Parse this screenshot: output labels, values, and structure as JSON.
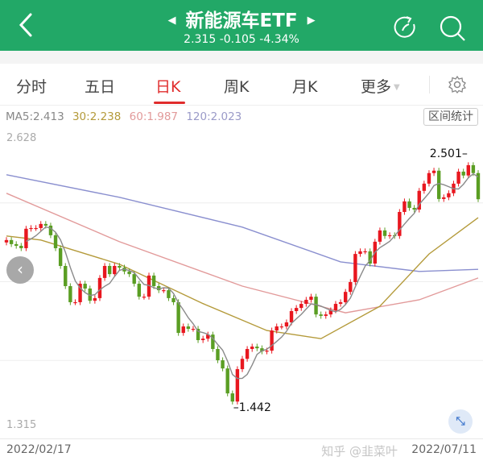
{
  "header": {
    "title": "新能源车ETF",
    "quote": "2.315 -0.105 -4.34%",
    "prev_icon": "triangle-left",
    "next_icon": "triangle-right",
    "color": "#22a867"
  },
  "tabs": [
    {
      "label": "分时"
    },
    {
      "label": "五日"
    },
    {
      "label": "日K",
      "active": true
    },
    {
      "label": "周K"
    },
    {
      "label": "月K"
    },
    {
      "label": "更多"
    }
  ],
  "ma": {
    "ma5": "MA5:2.413",
    "ma30": "30:2.238",
    "ma60": "60:1.987",
    "ma120": "120:2.023",
    "stats_button": "区间统计"
  },
  "axis": {
    "top": "2.628",
    "bottom": "1.315",
    "start_date": "2022/02/17",
    "end_date": "2022/07/11"
  },
  "watermark": "知乎 @韭菜叶",
  "chart_data": {
    "type": "candlestick",
    "ylim": [
      1.315,
      2.628
    ],
    "high_label": "2.501",
    "low_label": "1.442",
    "colors": {
      "up": "#e8171f",
      "down": "#5a9e23",
      "ma5": "#8a8a8a",
      "ma30": "#b49a3a",
      "ma60": "#e29a9a",
      "ma120": "#8a8fcf"
    },
    "closes": [
      2.145,
      2.128,
      2.121,
      2.111,
      2.192,
      2.195,
      2.195,
      2.212,
      2.205,
      2.165,
      2.111,
      2.037,
      1.953,
      1.886,
      1.886,
      1.963,
      1.943,
      1.892,
      1.903,
      1.987,
      2.037,
      2.003,
      2.037,
      2.03,
      2.014,
      2.003,
      1.963,
      1.909,
      1.909,
      1.997,
      1.953,
      1.936,
      1.936,
      1.903,
      1.886,
      1.758,
      1.785,
      1.775,
      1.775,
      1.728,
      1.734,
      1.751,
      1.691,
      1.644,
      1.61,
      1.506,
      1.472,
      1.607,
      1.65,
      1.691,
      1.701,
      1.694,
      1.681,
      1.684,
      1.768,
      1.785,
      1.785,
      1.802,
      1.849,
      1.862,
      1.879,
      1.896,
      1.909,
      1.835,
      1.829,
      1.835,
      1.852,
      1.879,
      1.886,
      1.929,
      1.97,
      2.087,
      2.098,
      2.098,
      2.047,
      2.138,
      2.185,
      2.162,
      2.165,
      2.162,
      2.262,
      2.306,
      2.279,
      2.272,
      2.35,
      2.38,
      2.424,
      2.434,
      2.316,
      2.323,
      2.34,
      2.38,
      2.43,
      2.414,
      2.457,
      2.424,
      2.315
    ],
    "ma30": [
      [
        0,
        2.162
      ],
      [
        7,
        2.145
      ],
      [
        23,
        2.044
      ],
      [
        40,
        1.88
      ],
      [
        53,
        1.768
      ],
      [
        64,
        1.734
      ],
      [
        76,
        1.869
      ],
      [
        86,
        2.087
      ],
      [
        96,
        2.238
      ]
    ],
    "ma60": [
      [
        0,
        2.34
      ],
      [
        23,
        2.138
      ],
      [
        48,
        1.953
      ],
      [
        69,
        1.842
      ],
      [
        84,
        1.896
      ],
      [
        96,
        1.987
      ]
    ],
    "ma120": [
      [
        0,
        2.417
      ],
      [
        23,
        2.323
      ],
      [
        48,
        2.199
      ],
      [
        68,
        2.054
      ],
      [
        84,
        2.014
      ],
      [
        96,
        2.023
      ]
    ]
  }
}
